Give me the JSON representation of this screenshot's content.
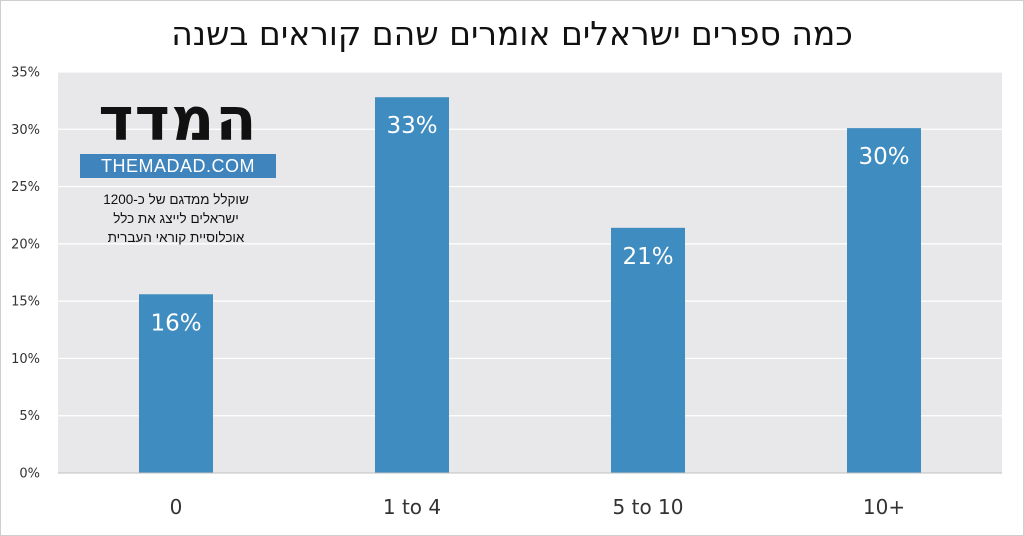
{
  "chart_data": {
    "type": "bar",
    "title": "כמה ספרים ישראלים אומרים שהם קוראים בשנה",
    "categories": [
      "0",
      "1 to 4",
      "5 to 10",
      "10+"
    ],
    "values": [
      15.6,
      32.8,
      21.4,
      30.1
    ],
    "data_labels": [
      "16%",
      "33%",
      "21%",
      "30%"
    ],
    "ylim": [
      0,
      35
    ],
    "yticks": [
      0,
      5,
      10,
      15,
      20,
      25,
      30,
      35
    ],
    "ytick_labels": [
      "0%",
      "5%",
      "10%",
      "15%",
      "20%",
      "25%",
      "30%",
      "35%"
    ],
    "grid": true,
    "bar_color": "#3f8cc1",
    "plot_background": "#e8e8ea",
    "gridline_color": "#ffffff"
  },
  "logo": {
    "icon": "themadad-logo",
    "wordmark": "המדד",
    "site": "THEMADAD.COM",
    "accent_color": "#3f84bd"
  },
  "note_lines": [
    "שוקלל ממדגם של כ-1200",
    "ישראלים לייצג את כלל",
    "אוכלוסיית קוראי העברית"
  ]
}
